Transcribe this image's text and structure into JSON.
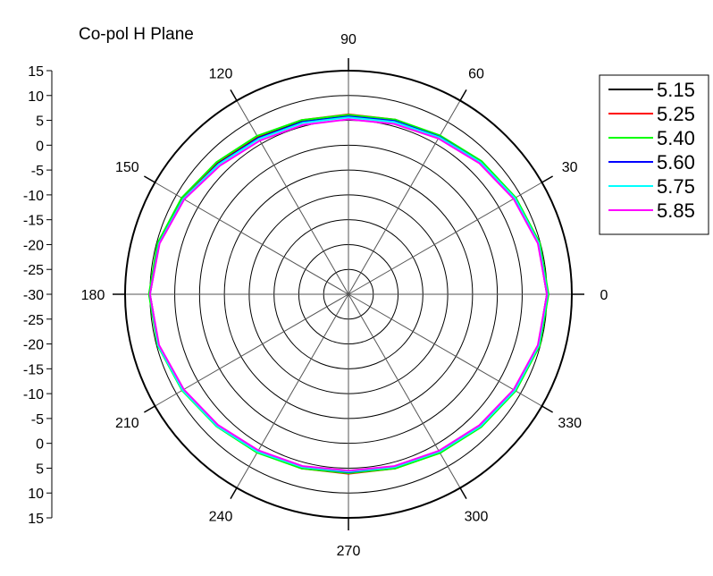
{
  "chart_data": {
    "type": "polar-line",
    "title": "Co-pol H Plane",
    "angle_ticks": [
      "0",
      "30",
      "60",
      "90",
      "120",
      "150",
      "180",
      "210",
      "240",
      "270",
      "300",
      "330"
    ],
    "radial_axis_ticks_upper": [
      "15",
      "10",
      "5",
      "0",
      "-5",
      "-10",
      "-15",
      "-20",
      "-25",
      "-30"
    ],
    "radial_axis_ticks_lower": [
      "-25",
      "-20",
      "-15",
      "-10",
      "-5",
      "0",
      "5",
      "10",
      "15"
    ],
    "rlim": [
      -30,
      15
    ],
    "grid": true,
    "legend_position": "top-right",
    "theta_deg": [
      0,
      15,
      30,
      45,
      60,
      75,
      90,
      105,
      120,
      135,
      150,
      165,
      180,
      195,
      210,
      225,
      240,
      255,
      270,
      285,
      300,
      315,
      330,
      345
    ],
    "series": [
      {
        "name": "5.15",
        "color": "#000000",
        "values": [
          10,
          9.6,
          8.6,
          7.6,
          6.6,
          6.2,
          6.0,
          6.1,
          6.5,
          7.3,
          8.6,
          9.5,
          10,
          9.6,
          8.5,
          7.4,
          6.6,
          6.2,
          6.0,
          6.2,
          6.7,
          7.6,
          8.6,
          9.6
        ]
      },
      {
        "name": "5.25",
        "color": "#ff0000",
        "values": [
          10.1,
          9.7,
          8.8,
          7.8,
          6.8,
          6.4,
          6.2,
          6.3,
          6.7,
          7.5,
          8.7,
          9.6,
          10.1,
          9.7,
          8.6,
          7.5,
          6.7,
          6.3,
          6.1,
          6.3,
          6.8,
          7.7,
          8.8,
          9.7
        ]
      },
      {
        "name": "5.40",
        "color": "#00ff00",
        "values": [
          10.3,
          9.9,
          8.9,
          7.9,
          6.9,
          6.4,
          6.1,
          6.3,
          6.8,
          7.6,
          8.8,
          9.8,
          10.2,
          9.8,
          8.7,
          7.6,
          6.8,
          6.3,
          6.0,
          6.3,
          6.9,
          7.8,
          8.9,
          9.9
        ]
      },
      {
        "name": "5.60",
        "color": "#0000ff",
        "values": [
          10.0,
          9.6,
          8.6,
          7.6,
          6.6,
          6.1,
          5.8,
          5.9,
          6.3,
          7.1,
          8.4,
          9.5,
          10.0,
          9.6,
          8.5,
          7.4,
          6.5,
          6.0,
          5.8,
          6.0,
          6.5,
          7.5,
          8.6,
          9.6
        ]
      },
      {
        "name": "5.75",
        "color": "#00ffff",
        "values": [
          10.1,
          9.7,
          8.7,
          7.6,
          6.5,
          5.9,
          5.6,
          5.7,
          6.1,
          7.0,
          8.4,
          9.5,
          10.0,
          9.7,
          8.6,
          7.5,
          6.6,
          6.0,
          5.7,
          6.0,
          6.6,
          7.6,
          8.7,
          9.7
        ]
      },
      {
        "name": "5.85",
        "color": "#ff00ff",
        "values": [
          10.0,
          9.5,
          8.4,
          7.3,
          6.2,
          5.5,
          5.2,
          5.3,
          5.7,
          6.6,
          8.2,
          9.4,
          10.0,
          9.5,
          8.3,
          7.2,
          6.3,
          5.8,
          5.5,
          5.8,
          6.4,
          7.3,
          8.4,
          9.5
        ]
      }
    ]
  }
}
